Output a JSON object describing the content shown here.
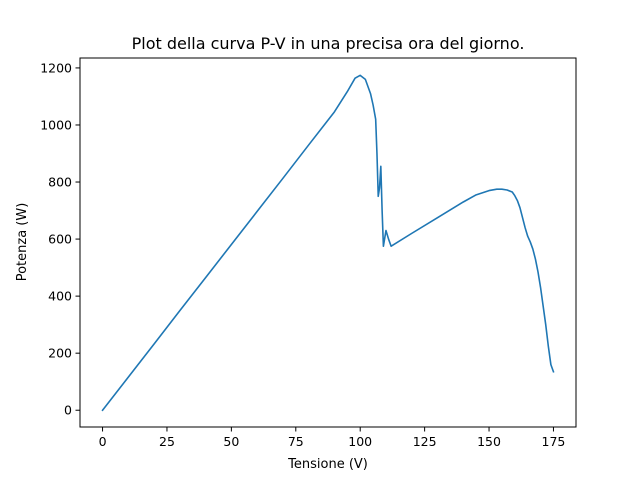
{
  "chart_data": {
    "type": "line",
    "title": "Plot della curva P-V in una precisa ora del giorno.",
    "xlabel": "Tensione (V)",
    "ylabel": "Potenza (W)",
    "xlim": [
      -8.75,
      183.75
    ],
    "ylim": [
      -58.8,
      1234.8
    ],
    "xticks": [
      0,
      25,
      50,
      75,
      100,
      125,
      150,
      175
    ],
    "yticks": [
      0,
      200,
      400,
      600,
      800,
      1000,
      1200
    ],
    "grid": false,
    "line_color": "#1f77b4",
    "series": [
      {
        "x": [
          0,
          10,
          20,
          30,
          40,
          50,
          60,
          70,
          80,
          90,
          95,
          98,
          100,
          102,
          104,
          105,
          106,
          106.5,
          107,
          107.5,
          108,
          108.5,
          109,
          110,
          111,
          112,
          120,
          130,
          140,
          145,
          150,
          153,
          155,
          157,
          159,
          160,
          161,
          162,
          163,
          164,
          165,
          166,
          167,
          168,
          169,
          170,
          171,
          172,
          173,
          174,
          175
        ],
        "y": [
          0,
          116,
          232,
          349,
          465,
          581,
          697,
          813,
          930,
          1046,
          1117,
          1164,
          1174,
          1160,
          1110,
          1070,
          1020,
          900,
          750,
          780,
          855,
          700,
          575,
          630,
          600,
          575,
          620,
          675,
          730,
          755,
          770,
          775,
          775,
          772,
          765,
          752,
          735,
          710,
          675,
          640,
          610,
          590,
          565,
          530,
          485,
          430,
          365,
          300,
          225,
          160,
          135
        ]
      }
    ]
  }
}
